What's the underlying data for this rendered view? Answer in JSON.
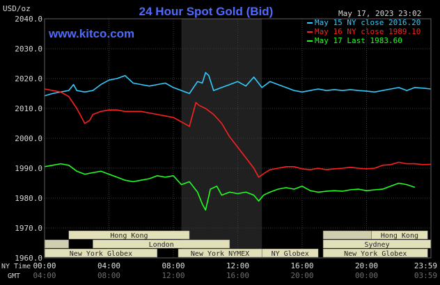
{
  "chart_data": {
    "type": "line",
    "title": "24 Hour Spot Gold (Bid)",
    "ylabel": "USD/oz",
    "watermark": "www.kitco.com",
    "timestamp": "May 17, 2023 23:02",
    "ylim": [
      1960,
      2040
    ],
    "yticks": [
      "2040.0",
      "2030.0",
      "2020.0",
      "2010.0",
      "2000.0",
      "1990.0",
      "1980.0",
      "1970.0",
      "1960.0"
    ],
    "x_row1_label": "NY Time",
    "x_row2_label": "GMT",
    "xticks_ny": [
      "00:00",
      "04:00",
      "08:00",
      "12:00",
      "16:00",
      "20:00",
      "23:59"
    ],
    "xticks_gmt": [
      "04:00",
      "08:00",
      "12:00",
      "16:00",
      "20:00",
      "00:00",
      "03:59"
    ],
    "xlim_hours": [
      0,
      24
    ],
    "shaded_region_hours": [
      8.5,
      13.5
    ],
    "grid": true,
    "legend_position": "top-right",
    "series": [
      {
        "name": "May 15 NY close 2016.20",
        "color": "#33ccff",
        "x": [
          0,
          0.5,
          1,
          1.5,
          1.8,
          2,
          2.5,
          3,
          3.5,
          4,
          4.5,
          5,
          5.5,
          6,
          6.5,
          7,
          7.5,
          8,
          8.5,
          9,
          9.5,
          9.8,
          10,
          10.2,
          10.5,
          11,
          11.5,
          12,
          12.5,
          13,
          13.5,
          14,
          14.5,
          15,
          15.5,
          16,
          16.5,
          17,
          17.5,
          18,
          18.5,
          19,
          19.5,
          20,
          20.5,
          21,
          21.5,
          22,
          22.5,
          23,
          23.5,
          24
        ],
        "y": [
          2014.2,
          2015,
          2015.5,
          2016,
          2018,
          2016,
          2015.5,
          2016,
          2018,
          2019.5,
          2020,
          2021,
          2018.5,
          2018,
          2017.5,
          2018,
          2018.5,
          2017,
          2016,
          2015,
          2019,
          2018.5,
          2022,
          2021,
          2016,
          2017,
          2018,
          2019,
          2017.5,
          2020.5,
          2017,
          2019,
          2018,
          2017,
          2016,
          2015.5,
          2016,
          2016.5,
          2016,
          2016.3,
          2016,
          2016.3,
          2016,
          2015.8,
          2015.5,
          2016,
          2016.5,
          2017,
          2016,
          2017,
          2016.8,
          2016.5
        ]
      },
      {
        "name": "May 16 NY close 1989.10",
        "color": "#ff2020",
        "x": [
          0,
          0.5,
          1,
          1.5,
          2,
          2.5,
          2.8,
          3,
          3.5,
          4,
          4.5,
          5,
          5.5,
          6,
          6.5,
          7,
          7.5,
          8,
          8.5,
          9,
          9.4,
          9.6,
          10,
          10.5,
          11,
          11.5,
          12,
          12.5,
          13,
          13.3,
          13.7,
          14,
          14.5,
          15,
          15.5,
          16,
          16.5,
          17,
          17.5,
          18,
          18.5,
          19,
          19.5,
          20,
          20.5,
          21,
          21.5,
          22,
          22.5,
          23,
          23.5,
          24
        ],
        "y": [
          2016.5,
          2016,
          2015.5,
          2014,
          2010,
          2005,
          2006,
          2008,
          2009,
          2009.5,
          2009.5,
          2009,
          2009,
          2009,
          2008.5,
          2008,
          2007.5,
          2007,
          2005.5,
          2004,
          2012,
          2011,
          2010,
          2008,
          2005,
          2000.5,
          1997,
          1993.5,
          1990,
          1987,
          1988.5,
          1989.5,
          1990,
          1990.5,
          1990.5,
          1989.8,
          1989.5,
          1990,
          1989.5,
          1989.8,
          1990,
          1990.3,
          1990,
          1989.8,
          1990,
          1991,
          1991.2,
          1992,
          1991.5,
          1991.5,
          1991.2,
          1991.3
        ]
      },
      {
        "name": "May 17 Last 1983.60",
        "color": "#22ff22",
        "x": [
          0,
          0.5,
          1,
          1.5,
          2,
          2.5,
          3,
          3.5,
          4,
          4.5,
          5,
          5.5,
          6,
          6.5,
          7,
          7.5,
          8,
          8.5,
          9,
          9.5,
          9.8,
          10,
          10.3,
          10.7,
          11,
          11.5,
          12,
          12.5,
          13,
          13.3,
          13.6,
          14,
          14.5,
          15,
          15.5,
          16,
          16.5,
          17,
          17.5,
          18,
          18.5,
          19,
          19.5,
          20,
          20.5,
          21,
          21.5,
          22,
          22.5,
          23
        ],
        "y": [
          1990.5,
          1991,
          1991.5,
          1991,
          1989,
          1988,
          1988.5,
          1989,
          1988,
          1987,
          1986,
          1985.5,
          1986,
          1986.5,
          1987.5,
          1987,
          1987.5,
          1984.5,
          1985.5,
          1982,
          1978,
          1976,
          1983,
          1984,
          1981,
          1982,
          1981.5,
          1982,
          1981,
          1979,
          1981,
          1982,
          1983,
          1983.5,
          1983,
          1984,
          1982.5,
          1982,
          1982.3,
          1982.5,
          1982.3,
          1982.8,
          1983,
          1982.5,
          1982.8,
          1983,
          1984,
          1985,
          1984.5,
          1983.6
        ]
      }
    ],
    "session_bars": [
      {
        "label": "Hong Kong",
        "start": 1.5,
        "end": 9.0
      },
      {
        "label": "Hong Kong",
        "start": 20.3,
        "end": 23.8
      },
      {
        "label": "London",
        "start": 3.0,
        "end": 11.5
      },
      {
        "label": "Sydney",
        "start": 17.3,
        "end": 24.0
      },
      {
        "label": "New York Globex",
        "start": 0.0,
        "end": 7.0
      },
      {
        "label": "New York NYMEX",
        "start": 8.3,
        "end": 13.5
      },
      {
        "label": "NY Globex",
        "start": 13.5,
        "end": 17.0
      },
      {
        "label": "New York Globex",
        "start": 17.3,
        "end": 23.8
      }
    ]
  }
}
